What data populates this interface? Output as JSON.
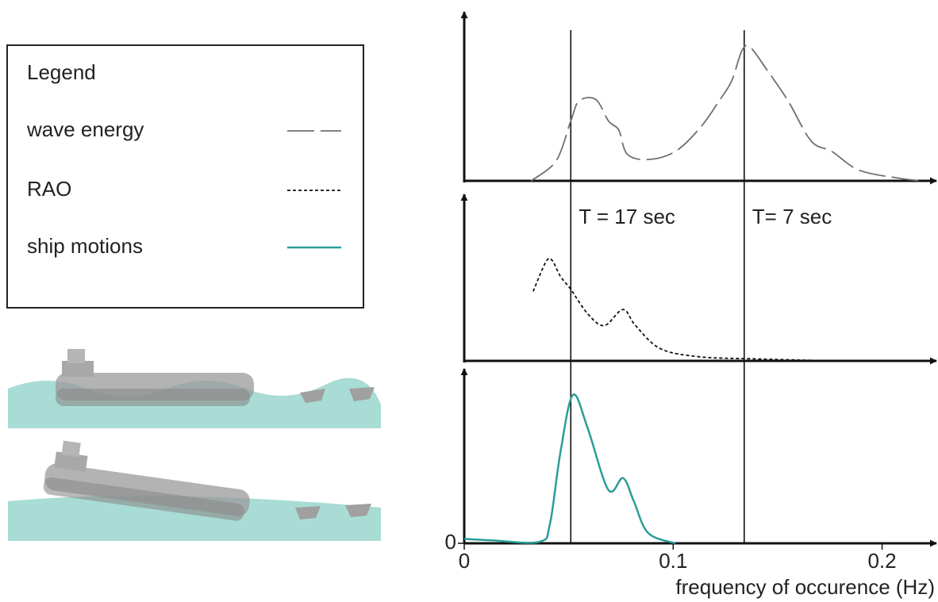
{
  "legend_title": "Legend",
  "chart_data": [
    {
      "type": "line",
      "x": [
        0.032,
        0.044,
        0.051,
        0.055,
        0.063,
        0.069,
        0.074,
        0.078,
        0.088,
        0.101,
        0.113,
        0.122,
        0.128,
        0.133,
        0.137,
        0.145,
        0.155,
        0.166,
        0.176,
        0.189,
        0.208,
        0.219
      ],
      "series": [
        {
          "name": "wave energy",
          "color": "#707070",
          "dash": "long",
          "values": [
            0,
            0.15,
            0.45,
            0.6,
            0.61,
            0.45,
            0.38,
            0.2,
            0.16,
            0.22,
            0.4,
            0.6,
            0.75,
            0.98,
            1.0,
            0.83,
            0.6,
            0.3,
            0.22,
            0.08,
            0.02,
            0
          ]
        }
      ],
      "xlim": [
        0,
        0.226
      ],
      "ylim": [
        0,
        1
      ]
    },
    {
      "type": "line",
      "x": [
        0.033,
        0.039,
        0.042,
        0.046,
        0.051,
        0.059,
        0.067,
        0.076,
        0.082,
        0.094,
        0.113,
        0.139,
        0.177
      ],
      "series": [
        {
          "name": "RAO",
          "color": "#111111",
          "dash": "short",
          "values": [
            0.69,
            0.98,
            1.0,
            0.84,
            0.71,
            0.47,
            0.35,
            0.51,
            0.35,
            0.12,
            0.04,
            0.02,
            0
          ]
        }
      ],
      "xlim": [
        0,
        0.226
      ],
      "ylim": [
        0,
        1
      ],
      "annotations": [
        {
          "x": 0.051,
          "text": "T = 17 sec"
        },
        {
          "x": 0.134,
          "text": "T= 7 sec"
        }
      ]
    },
    {
      "type": "line",
      "x": [
        0,
        0.013,
        0.036,
        0.041,
        0.046,
        0.052,
        0.059,
        0.069,
        0.076,
        0.081,
        0.088,
        0.101
      ],
      "series": [
        {
          "name": "ship motions",
          "color": "#2a9d9a",
          "dash": "solid",
          "values": [
            0.03,
            0.02,
            0.01,
            0.13,
            0.61,
            1.0,
            0.78,
            0.36,
            0.44,
            0.29,
            0.07,
            0
          ]
        }
      ],
      "xlim": [
        0,
        0.226
      ],
      "ylim": [
        0,
        1
      ],
      "xticks": [
        0,
        0.1,
        0.2
      ],
      "yticks": [
        0
      ],
      "xlabel": "frequency of occurence (Hz)"
    }
  ]
}
